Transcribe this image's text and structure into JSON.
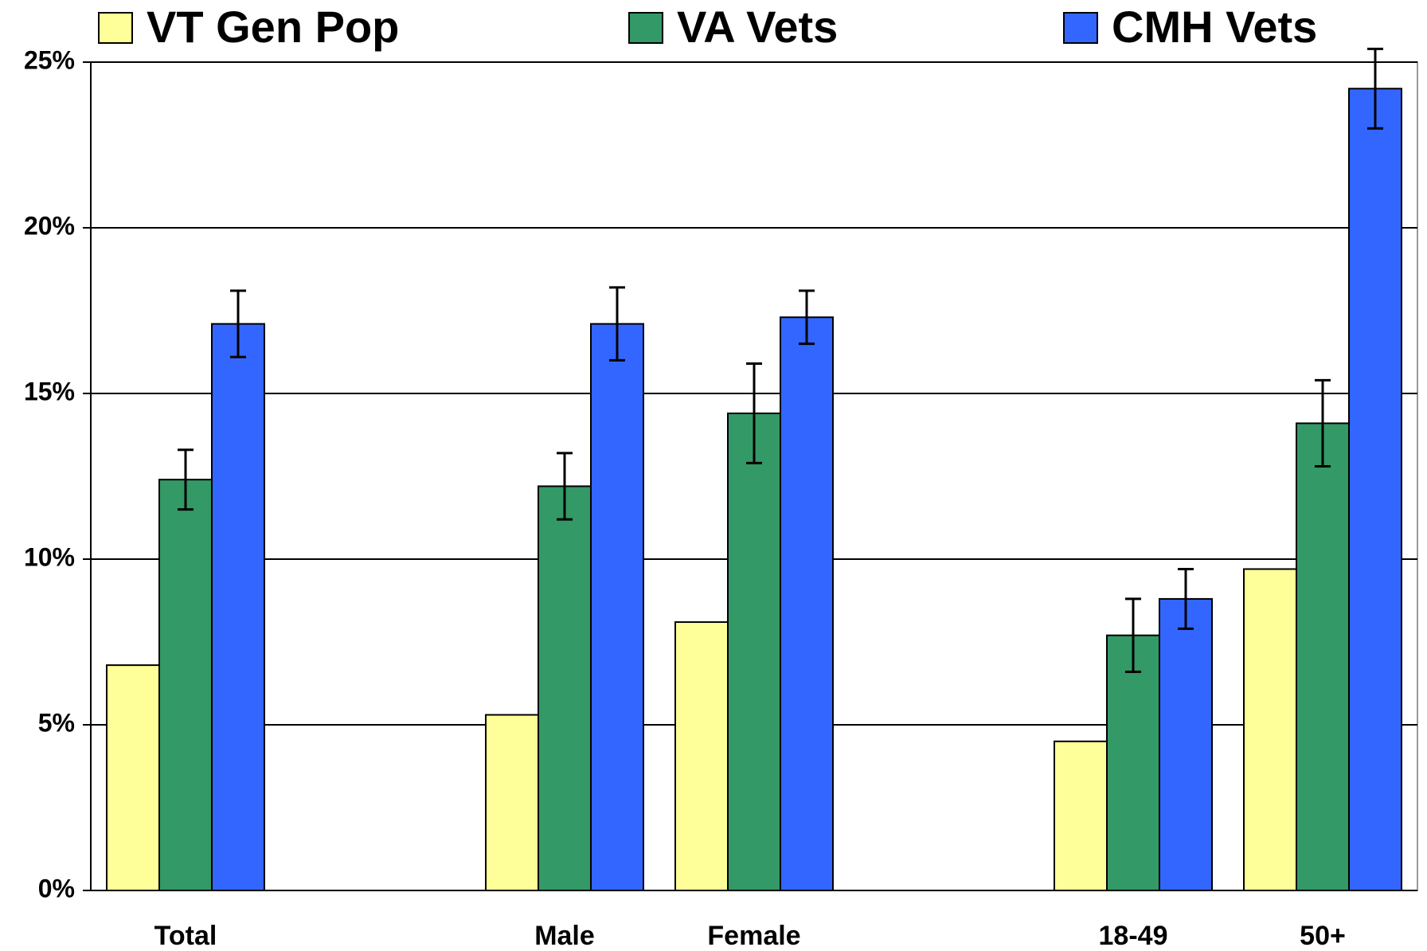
{
  "chart_data": {
    "type": "bar",
    "categories": [
      "Total",
      null,
      "Male",
      "Female",
      null,
      "18-49",
      "50+"
    ],
    "series": [
      {
        "name": "VT Gen Pop",
        "color": "#ffff99",
        "values": [
          6.8,
          null,
          5.3,
          8.1,
          null,
          4.5,
          9.7
        ]
      },
      {
        "name": "VA Vets",
        "color": "#339966",
        "values": [
          12.4,
          null,
          12.2,
          14.4,
          null,
          7.7,
          14.1
        ],
        "errors": [
          0.9,
          null,
          1.0,
          1.5,
          null,
          1.1,
          1.3
        ]
      },
      {
        "name": "CMH Vets",
        "color": "#3366ff",
        "values": [
          17.1,
          null,
          17.1,
          17.3,
          null,
          8.8,
          24.2
        ],
        "errors": [
          1.0,
          null,
          1.1,
          0.8,
          null,
          0.9,
          1.2
        ]
      }
    ],
    "ylim": [
      0,
      25
    ],
    "yticks": [
      {
        "value": 0,
        "label": "0%"
      },
      {
        "value": 5,
        "label": "5%"
      },
      {
        "value": 10,
        "label": "10%"
      },
      {
        "value": 15,
        "label": "15%"
      },
      {
        "value": 20,
        "label": "20%"
      },
      {
        "value": 25,
        "label": "25%"
      }
    ],
    "grid": true
  }
}
